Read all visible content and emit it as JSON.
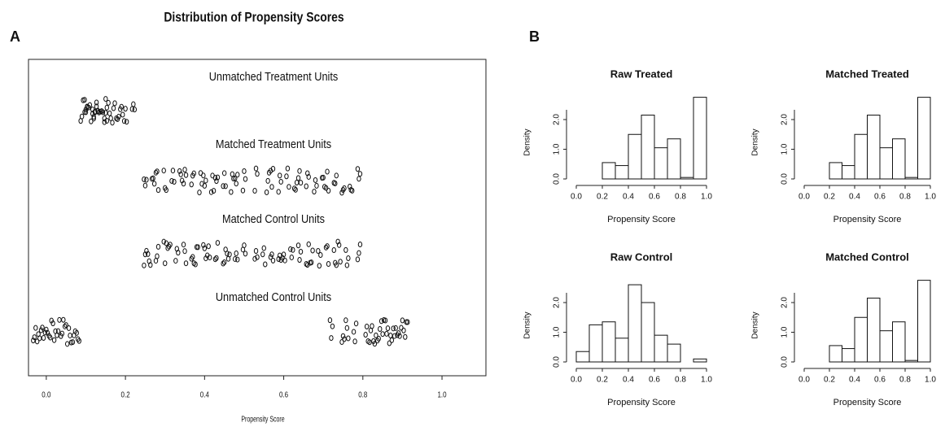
{
  "chart_data": [
    {
      "type": "strip",
      "panel": "A",
      "title": "Distribution of Propensity Scores",
      "xlabel": "Propensity Score",
      "xlim": [
        -0.045,
        1.111
      ],
      "xticks": [
        {
          "value": 0,
          "label": "0.0"
        },
        {
          "value": 0.2,
          "label": "0.2"
        },
        {
          "value": 0.4,
          "label": "0.4"
        },
        {
          "value": 0.6,
          "label": "0.6"
        },
        {
          "value": 0.8,
          "label": "0.8"
        },
        {
          "value": 1,
          "label": "1.0"
        }
      ],
      "groups": [
        {
          "name": "Unmatched Treatment Units",
          "values": [
            0.09,
            0.1,
            0.1,
            0.11,
            0.12,
            0.12,
            0.13,
            0.13,
            0.14,
            0.15,
            0.15,
            0.16,
            0.17,
            0.18,
            0.19,
            0.2,
            0.22
          ]
        },
        {
          "name": "Matched Treatment Units",
          "values": [
            0.25,
            0.27,
            0.28,
            0.3,
            0.32,
            0.34,
            0.35,
            0.37,
            0.39,
            0.4,
            0.42,
            0.43,
            0.45,
            0.47,
            0.48,
            0.5,
            0.53,
            0.56,
            0.57,
            0.59,
            0.61,
            0.63,
            0.64,
            0.66,
            0.68,
            0.7,
            0.71,
            0.73,
            0.75,
            0.77,
            0.79
          ]
        },
        {
          "name": "Matched Control Units",
          "values": [
            0.25,
            0.26,
            0.28,
            0.3,
            0.31,
            0.33,
            0.35,
            0.37,
            0.38,
            0.4,
            0.41,
            0.43,
            0.45,
            0.46,
            0.48,
            0.5,
            0.53,
            0.55,
            0.57,
            0.59,
            0.6,
            0.62,
            0.64,
            0.66,
            0.67,
            0.69,
            0.71,
            0.73,
            0.74,
            0.76,
            0.79
          ]
        },
        {
          "name": "Unmatched Control Units",
          "values": [
            -0.03,
            -0.02,
            -0.01,
            0.0,
            0.01,
            0.02,
            0.03,
            0.04,
            0.05,
            0.06,
            0.07,
            0.08,
            0.72,
            0.75,
            0.76,
            0.78,
            0.81,
            0.82,
            0.83,
            0.84,
            0.85,
            0.86,
            0.87,
            0.88,
            0.89,
            0.9,
            0.91
          ]
        }
      ]
    },
    {
      "type": "histogram",
      "panel": "B",
      "title": "Raw Treated",
      "xlabel": "Propensity Score",
      "ylabel": "Density",
      "bins": [
        0,
        0.1,
        0.2,
        0.3,
        0.4,
        0.5,
        0.6,
        0.7,
        0.8,
        0.9,
        1.0
      ],
      "counts": [
        0,
        0,
        0.55,
        0.45,
        1.5,
        2.15,
        1.05,
        1.35,
        0.05,
        2.75
      ],
      "xlim": [
        0,
        1
      ],
      "ylim": [
        0,
        2.8
      ],
      "xticks": [
        {
          "value": 0,
          "label": "0.0"
        },
        {
          "value": 0.2,
          "label": "0.2"
        },
        {
          "value": 0.4,
          "label": "0.4"
        },
        {
          "value": 0.6,
          "label": "0.6"
        },
        {
          "value": 0.8,
          "label": "0.8"
        },
        {
          "value": 1,
          "label": "1.0"
        }
      ],
      "yticks": [
        {
          "value": 0,
          "label": "0.0"
        },
        {
          "value": 1,
          "label": "1.0"
        },
        {
          "value": 2,
          "label": "2.0"
        }
      ]
    },
    {
      "type": "histogram",
      "title": "Matched Treated",
      "xlabel": "Propensity Score",
      "ylabel": "Density",
      "bins": [
        0,
        0.1,
        0.2,
        0.3,
        0.4,
        0.5,
        0.6,
        0.7,
        0.8,
        0.9,
        1.0
      ],
      "counts": [
        0,
        0,
        0.55,
        0.45,
        1.5,
        2.15,
        1.05,
        1.35,
        0.05,
        2.75
      ],
      "xlim": [
        0,
        1
      ],
      "ylim": [
        0,
        2.8
      ],
      "xticks": [
        {
          "value": 0,
          "label": "0.0"
        },
        {
          "value": 0.2,
          "label": "0.2"
        },
        {
          "value": 0.4,
          "label": "0.4"
        },
        {
          "value": 0.6,
          "label": "0.6"
        },
        {
          "value": 0.8,
          "label": "0.8"
        },
        {
          "value": 1,
          "label": "1.0"
        }
      ],
      "yticks": [
        {
          "value": 0,
          "label": "0.0"
        },
        {
          "value": 1,
          "label": "1.0"
        },
        {
          "value": 2,
          "label": "2.0"
        }
      ]
    },
    {
      "type": "histogram",
      "title": "Raw Control",
      "xlabel": "Propensity Score",
      "ylabel": "Density",
      "bins": [
        0,
        0.1,
        0.2,
        0.3,
        0.4,
        0.5,
        0.6,
        0.7,
        0.8,
        0.9,
        1.0
      ],
      "counts": [
        0.35,
        1.25,
        1.35,
        0.8,
        2.6,
        2.0,
        0.9,
        0.6,
        0,
        0.1
      ],
      "xlim": [
        0,
        1
      ],
      "ylim": [
        0,
        2.8
      ],
      "xticks": [
        {
          "value": 0,
          "label": "0.0"
        },
        {
          "value": 0.2,
          "label": "0.2"
        },
        {
          "value": 0.4,
          "label": "0.4"
        },
        {
          "value": 0.6,
          "label": "0.6"
        },
        {
          "value": 0.8,
          "label": "0.8"
        },
        {
          "value": 1,
          "label": "1.0"
        }
      ],
      "yticks": [
        {
          "value": 0,
          "label": "0.0"
        },
        {
          "value": 1,
          "label": "1.0"
        },
        {
          "value": 2,
          "label": "2.0"
        }
      ]
    },
    {
      "type": "histogram",
      "title": "Matched Control",
      "xlabel": "Propensity Score",
      "ylabel": "Density",
      "bins": [
        0,
        0.1,
        0.2,
        0.3,
        0.4,
        0.5,
        0.6,
        0.7,
        0.8,
        0.9,
        1.0
      ],
      "counts": [
        0,
        0,
        0.55,
        0.45,
        1.5,
        2.15,
        1.05,
        1.35,
        0.05,
        2.75
      ],
      "xlim": [
        0,
        1
      ],
      "ylim": [
        0,
        2.8
      ],
      "xticks": [
        {
          "value": 0,
          "label": "0.0"
        },
        {
          "value": 0.2,
          "label": "0.2"
        },
        {
          "value": 0.4,
          "label": "0.4"
        },
        {
          "value": 0.6,
          "label": "0.6"
        },
        {
          "value": 0.8,
          "label": "0.8"
        },
        {
          "value": 1,
          "label": "1.0"
        }
      ],
      "yticks": [
        {
          "value": 0,
          "label": "0.0"
        },
        {
          "value": 1,
          "label": "1.0"
        },
        {
          "value": 2,
          "label": "2.0"
        }
      ]
    }
  ]
}
